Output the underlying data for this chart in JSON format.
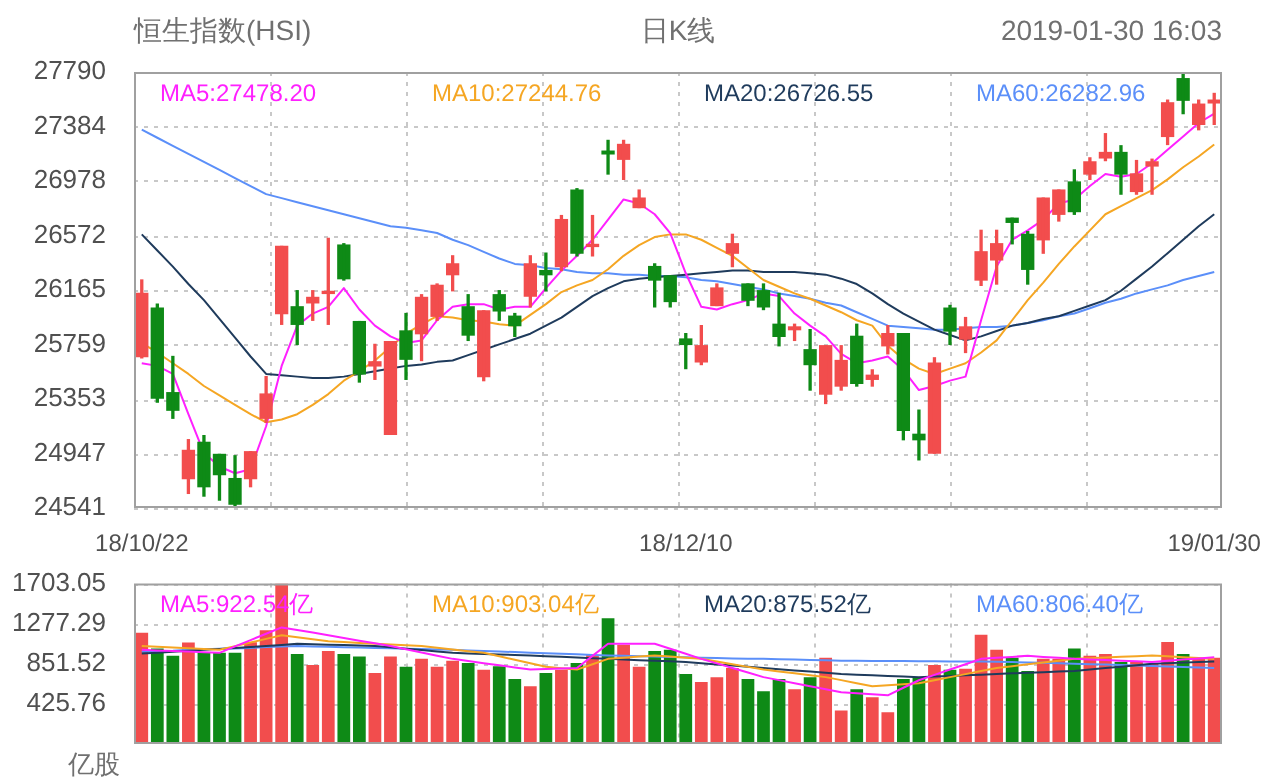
{
  "chart_data": [
    {
      "type": "candlestick",
      "title": "恒生指数(HSI)",
      "subtitle": "日K线",
      "annotations": [
        "2019-01-30 16:03"
      ],
      "categories": [
        "18/10/22",
        null,
        null,
        null,
        null,
        null,
        null,
        null,
        null,
        null,
        null,
        null,
        null,
        null,
        null,
        null,
        null,
        null,
        null,
        null,
        null,
        null,
        null,
        null,
        null,
        null,
        null,
        null,
        null,
        null,
        null,
        null,
        null,
        null,
        null,
        "18/12/10",
        null,
        null,
        null,
        null,
        null,
        null,
        null,
        null,
        null,
        null,
        null,
        null,
        null,
        null,
        null,
        null,
        null,
        null,
        null,
        null,
        null,
        null,
        null,
        null,
        null,
        null,
        null,
        null,
        null,
        null,
        null,
        null,
        null,
        "19/01/30"
      ],
      "ohlc": [
        [
          25670,
          26240,
          25660,
          26140
        ],
        [
          26030,
          26060,
          25330,
          25360
        ],
        [
          25400,
          25670,
          25210,
          25270
        ],
        [
          24760,
          25050,
          24650,
          24970
        ],
        [
          25030,
          25080,
          24630,
          24700
        ],
        [
          24940,
          24940,
          24600,
          24790
        ],
        [
          24760,
          24930,
          24550,
          24570
        ],
        [
          24760,
          24960,
          24700,
          24960
        ],
        [
          25210,
          25520,
          25180,
          25390
        ],
        [
          25990,
          26490,
          25910,
          26490
        ],
        [
          26040,
          26160,
          25760,
          25910
        ],
        [
          26070,
          26160,
          25940,
          26110
        ],
        [
          26140,
          26550,
          25910,
          26150
        ],
        [
          26500,
          26510,
          26240,
          26250
        ],
        [
          25930,
          25930,
          25480,
          25540
        ],
        [
          25600,
          25760,
          25500,
          25630
        ],
        [
          25090,
          25780,
          25090,
          25780
        ],
        [
          25860,
          25990,
          25500,
          25650
        ],
        [
          25840,
          26130,
          25640,
          26110
        ],
        [
          25970,
          26210,
          25940,
          26200
        ],
        [
          26280,
          26420,
          26160,
          26360
        ],
        [
          26040,
          26130,
          25790,
          25830
        ],
        [
          25520,
          26010,
          25490,
          26010
        ],
        [
          26130,
          26160,
          25940,
          26010
        ],
        [
          25970,
          25990,
          25820,
          25900
        ],
        [
          26120,
          26420,
          26040,
          26360
        ],
        [
          26310,
          26440,
          26160,
          26280
        ],
        [
          26340,
          26720,
          26310,
          26690
        ],
        [
          26910,
          26920,
          26420,
          26440
        ],
        [
          26490,
          26720,
          26420,
          26500
        ],
        [
          27200,
          27280,
          27030,
          27180
        ],
        [
          27140,
          27280,
          26990,
          27250
        ],
        [
          26780,
          26910,
          26780,
          26850
        ],
        [
          26340,
          26360,
          26040,
          26240
        ],
        [
          26270,
          26270,
          26040,
          26080
        ],
        [
          25800,
          25840,
          25580,
          25760
        ],
        [
          25630,
          25900,
          25610,
          25750
        ],
        [
          26050,
          26210,
          26050,
          26180
        ],
        [
          26440,
          26580,
          26340,
          26510
        ],
        [
          26210,
          26210,
          26050,
          26090
        ],
        [
          26160,
          26210,
          26020,
          26040
        ],
        [
          25910,
          26140,
          25750,
          25820
        ],
        [
          25870,
          25910,
          25790,
          25890
        ],
        [
          25720,
          25870,
          25420,
          25610
        ],
        [
          25390,
          25750,
          25320,
          25750
        ],
        [
          25450,
          25750,
          25420,
          25640
        ],
        [
          25820,
          25910,
          25450,
          25470
        ],
        [
          25500,
          25570,
          25450,
          25530
        ],
        [
          25750,
          25900,
          25690,
          25840
        ],
        [
          25840,
          25840,
          25050,
          25120
        ],
        [
          25090,
          25270,
          24900,
          25050
        ],
        [
          24950,
          25660,
          24950,
          25620
        ],
        [
          26030,
          26050,
          25760,
          25860
        ],
        [
          25800,
          25960,
          25700,
          25890
        ],
        [
          26240,
          26610,
          26200,
          26450
        ],
        [
          26390,
          26610,
          26210,
          26510
        ],
        [
          26700,
          26700,
          26510,
          26670
        ],
        [
          26580,
          26600,
          26210,
          26320
        ],
        [
          26540,
          26850,
          26440,
          26850
        ],
        [
          26730,
          26910,
          26680,
          26910
        ],
        [
          26970,
          27060,
          26730,
          26750
        ],
        [
          27030,
          27150,
          26990,
          27120
        ],
        [
          27150,
          27330,
          27130,
          27190
        ],
        [
          27190,
          27240,
          26880,
          27030
        ],
        [
          26900,
          27130,
          26880,
          27030
        ],
        [
          27090,
          27140,
          26880,
          27120
        ],
        [
          27310,
          27580,
          27250,
          27560
        ],
        [
          27740,
          27780,
          27480,
          27580
        ],
        [
          27400,
          27580,
          27360,
          27550
        ],
        [
          27560,
          27630,
          27400,
          27580
        ]
      ],
      "colors": [
        "#f24d4d",
        "#0e8a16",
        "#0e8a16",
        "#f24d4d",
        "#0e8a16",
        "#0e8a16",
        "#0e8a16",
        "#f24d4d",
        "#f24d4d",
        "#f24d4d",
        "#0e8a16",
        "#f24d4d",
        "#f24d4d",
        "#0e8a16",
        "#0e8a16",
        "#f24d4d",
        "#f24d4d",
        "#0e8a16",
        "#f24d4d",
        "#f24d4d",
        "#f24d4d",
        "#0e8a16",
        "#f24d4d",
        "#0e8a16",
        "#0e8a16",
        "#f24d4d",
        "#0e8a16",
        "#f24d4d",
        "#0e8a16",
        "#f24d4d",
        "#0e8a16",
        "#f24d4d",
        "#f24d4d",
        "#0e8a16",
        "#0e8a16",
        "#0e8a16",
        "#f24d4d",
        "#f24d4d",
        "#f24d4d",
        "#0e8a16",
        "#0e8a16",
        "#0e8a16",
        "#f24d4d",
        "#0e8a16",
        "#f24d4d",
        "#f24d4d",
        "#0e8a16",
        "#f24d4d",
        "#f24d4d",
        "#0e8a16",
        "#0e8a16",
        "#f24d4d",
        "#0e8a16",
        "#f24d4d",
        "#f24d4d",
        "#f24d4d",
        "#0e8a16",
        "#0e8a16",
        "#f24d4d",
        "#f24d4d",
        "#0e8a16",
        "#f24d4d",
        "#f24d4d",
        "#0e8a16",
        "#f24d4d",
        "#f24d4d",
        "#f24d4d",
        "#0e8a16",
        "#f24d4d",
        "#f24d4d"
      ],
      "series": [
        {
          "type": "line",
          "name": "MA5:27478.20",
          "color": "#ff20ff",
          "values": [
            25620,
            25600,
            25540,
            25240,
            24950,
            24850,
            24800,
            24830,
            25150,
            25600,
            25900,
            25990,
            26040,
            26180,
            26020,
            25900,
            25820,
            25770,
            25790,
            25940,
            26040,
            26060,
            26060,
            26020,
            26040,
            26040,
            26180,
            26310,
            26420,
            26540,
            26690,
            26840,
            26810,
            26730,
            26590,
            26290,
            26040,
            26020,
            26060,
            26090,
            26140,
            26120,
            25990,
            25900,
            25820,
            25690,
            25620,
            25640,
            25670,
            25570,
            25420,
            25450,
            25490,
            25520,
            25940,
            26340,
            26540,
            26610,
            26690,
            26810,
            26840,
            26940,
            27030,
            27010,
            27030,
            27110,
            27210,
            27310,
            27410,
            27480
          ]
        },
        {
          "type": "line",
          "name": "MA10:27244.76",
          "color": "#f5a623",
          "values": [
            25770,
            25700,
            25620,
            25540,
            25450,
            25380,
            25310,
            25240,
            25180,
            25200,
            25240,
            25310,
            25390,
            25490,
            25560,
            25640,
            25740,
            25840,
            25910,
            25970,
            25960,
            25940,
            25930,
            25910,
            25900,
            25980,
            26060,
            26150,
            26200,
            26240,
            26320,
            26420,
            26500,
            26560,
            26580,
            26580,
            26540,
            26480,
            26420,
            26330,
            26240,
            26190,
            26140,
            26100,
            26050,
            26000,
            25940,
            25900,
            25750,
            25650,
            25580,
            25540,
            25580,
            25620,
            25700,
            25790,
            25940,
            26090,
            26220,
            26360,
            26490,
            26610,
            26730,
            26790,
            26850,
            26910,
            26990,
            27080,
            27160,
            27250
          ]
        },
        {
          "type": "line",
          "name": "MA20:26726.55",
          "color": "#1f3b5c",
          "values": [
            26580,
            26460,
            26340,
            26210,
            26090,
            25950,
            25810,
            25670,
            25540,
            25530,
            25520,
            25510,
            25510,
            25520,
            25540,
            25560,
            25580,
            25600,
            25610,
            25630,
            25640,
            25680,
            25720,
            25760,
            25800,
            25840,
            25900,
            25960,
            26040,
            26120,
            26180,
            26230,
            26250,
            26260,
            26270,
            26280,
            26290,
            26300,
            26310,
            26310,
            26300,
            26300,
            26300,
            26290,
            26280,
            26250,
            26210,
            26140,
            26060,
            25990,
            25930,
            25870,
            25830,
            25790,
            25820,
            25860,
            25900,
            25920,
            25950,
            25970,
            26010,
            26050,
            26090,
            26160,
            26250,
            26340,
            26440,
            26540,
            26640,
            26730
          ]
        },
        {
          "type": "line",
          "name": "MA60:26282.96",
          "color": "#5b8ff9",
          "values": [
            27360,
            27300,
            27240,
            27180,
            27120,
            27060,
            27000,
            26940,
            26880,
            26850,
            26820,
            26790,
            26760,
            26730,
            26700,
            26670,
            26640,
            26630,
            26610,
            26590,
            26540,
            26500,
            26450,
            26400,
            26360,
            26350,
            26330,
            26320,
            26300,
            26290,
            26290,
            26280,
            26280,
            26270,
            26270,
            26260,
            26240,
            26230,
            26210,
            26190,
            26170,
            26140,
            26120,
            26100,
            26070,
            26050,
            26000,
            25950,
            25900,
            25890,
            25880,
            25870,
            25870,
            25880,
            25890,
            25890,
            25900,
            25920,
            25940,
            25970,
            25990,
            26030,
            26070,
            26100,
            26140,
            26170,
            26200,
            26240,
            26270,
            26300
          ]
        }
      ],
      "ylim": [
        24541,
        27790
      ],
      "yticks": [
        24541,
        24947,
        25353,
        25759,
        26165,
        26572,
        26978,
        27384,
        27790
      ],
      "grid": true,
      "legend": "top"
    },
    {
      "type": "bar",
      "ylabel": "亿股",
      "categories": [
        null,
        null,
        null,
        null,
        null,
        null,
        null,
        null,
        null,
        null,
        null,
        null,
        null,
        null,
        null,
        null,
        null,
        null,
        null,
        null,
        null,
        null,
        null,
        null,
        null,
        null,
        null,
        null,
        null,
        null,
        null,
        null,
        null,
        null,
        null,
        null,
        null,
        null,
        null,
        null,
        null,
        null,
        null,
        null,
        null,
        null,
        null,
        null,
        null,
        null,
        null,
        null,
        null,
        null,
        null,
        null,
        null,
        null,
        null,
        null,
        null,
        null,
        null,
        null,
        null,
        null,
        null,
        null,
        null,
        null
      ],
      "series": [
        {
          "type": "bar",
          "values": [
            1180,
            1014,
            937,
            1078,
            968,
            968,
            968,
            1080,
            1207,
            1703,
            956,
            840,
            987,
            956,
            929,
            755,
            929,
            820,
            904,
            820,
            884,
            859,
            788,
            826,
            691,
            613,
            755,
            788,
            859,
            948,
            1335,
            1053,
            820,
            987,
            1000,
            743,
            658,
            710,
            807,
            691,
            561,
            691,
            581,
            710,
            917,
            356,
            581,
            497,
            337,
            691,
            710,
            840,
            788,
            800,
            1161,
            1000,
            917,
            774,
            904,
            904,
            1014,
            937,
            956,
            871,
            871,
            852,
            1084,
            956,
            917,
            917
          ],
          "colors": [
            "#f24d4d",
            "#0e8a16",
            "#0e8a16",
            "#f24d4d",
            "#0e8a16",
            "#0e8a16",
            "#0e8a16",
            "#f24d4d",
            "#f24d4d",
            "#f24d4d",
            "#0e8a16",
            "#f24d4d",
            "#f24d4d",
            "#0e8a16",
            "#0e8a16",
            "#f24d4d",
            "#f24d4d",
            "#0e8a16",
            "#f24d4d",
            "#f24d4d",
            "#f24d4d",
            "#0e8a16",
            "#f24d4d",
            "#0e8a16",
            "#0e8a16",
            "#f24d4d",
            "#0e8a16",
            "#f24d4d",
            "#0e8a16",
            "#f24d4d",
            "#0e8a16",
            "#f24d4d",
            "#f24d4d",
            "#0e8a16",
            "#0e8a16",
            "#0e8a16",
            "#f24d4d",
            "#f24d4d",
            "#f24d4d",
            "#0e8a16",
            "#0e8a16",
            "#0e8a16",
            "#f24d4d",
            "#0e8a16",
            "#f24d4d",
            "#f24d4d",
            "#0e8a16",
            "#f24d4d",
            "#f24d4d",
            "#0e8a16",
            "#0e8a16",
            "#f24d4d",
            "#0e8a16",
            "#f24d4d",
            "#f24d4d",
            "#f24d4d",
            "#0e8a16",
            "#0e8a16",
            "#f24d4d",
            "#f24d4d",
            "#0e8a16",
            "#f24d4d",
            "#f24d4d",
            "#0e8a16",
            "#f24d4d",
            "#f24d4d",
            "#f24d4d",
            "#0e8a16",
            "#f24d4d",
            "#f24d4d"
          ]
        },
        {
          "type": "line",
          "name": "MA5:922.54亿",
          "color": "#ff20ff",
          "values": [
            1000,
            994,
            987,
            981,
            974,
            968,
            1036,
            1103,
            1171,
            1238,
            1210,
            1183,
            1155,
            1126,
            1097,
            1069,
            1040,
            1006,
            972,
            938,
            904,
            881,
            858,
            836,
            813,
            790,
            796,
            801,
            807,
            936,
            1065,
            1065,
            1065,
            1065,
            1011,
            958,
            904,
            856,
            807,
            759,
            710,
            678,
            646,
            614,
            582,
            550,
            539,
            528,
            517,
            597,
            677,
            734,
            791,
            847,
            904,
            915,
            925,
            936,
            925,
            915,
            904,
            897,
            891,
            884,
            878,
            871,
            884,
            896,
            909,
            922
          ]
        },
        {
          "type": "line",
          "name": "MA10:903.04亿",
          "color": "#f5a623",
          "values": [
            1040,
            1032,
            1024,
            1016,
            1008,
            1000,
            1039,
            1078,
            1116,
            1155,
            1133,
            1112,
            1090,
            1082,
            1073,
            1065,
            1057,
            1048,
            1040,
            1022,
            1004,
            986,
            968,
            931,
            894,
            857,
            820,
            805,
            790,
            847,
            904,
            916,
            928,
            940,
            928,
            916,
            904,
            876,
            847,
            819,
            790,
            770,
            750,
            730,
            710,
            678,
            645,
            613,
            624,
            634,
            645,
            677,
            710,
            742,
            775,
            807,
            826,
            846,
            865,
            885,
            904,
            911,
            919,
            926,
            933,
            940,
            931,
            921,
            912,
            903
          ]
        },
        {
          "type": "line",
          "name": "MA20:875.52亿",
          "color": "#1f3b5c",
          "values": [
            960,
            970,
            980,
            990,
            1000,
            1010,
            1020,
            1030,
            1040,
            1052,
            1065,
            1060,
            1055,
            1050,
            1045,
            1040,
            1026,
            1012,
            997,
            982,
            968,
            962,
            956,
            951,
            945,
            940,
            933,
            926,
            918,
            911,
            904,
            897,
            890,
            884,
            878,
            871,
            858,
            845,
            833,
            820,
            807,
            794,
            781,
            769,
            756,
            743,
            736,
            730,
            723,
            717,
            710,
            717,
            723,
            730,
            736,
            743,
            750,
            756,
            762,
            769,
            775,
            790,
            806,
            821,
            837,
            852,
            858,
            864,
            870,
            876
          ]
        },
        {
          "type": "line",
          "name": "MA60:806.40亿",
          "color": "#5b8ff9",
          "values": [
            980,
            985,
            990,
            1000,
            1005,
            1010,
            1015,
            1020,
            1030,
            1035,
            1040,
            1036,
            1032,
            1028,
            1024,
            1020,
            1016,
            1012,
            1008,
            1004,
            1000,
            994,
            988,
            982,
            976,
            970,
            964,
            958,
            952,
            946,
            940,
            936,
            932,
            928,
            924,
            920,
            916,
            912,
            908,
            904,
            904,
            900,
            896,
            892,
            888,
            884,
            883,
            882,
            881,
            880,
            879,
            878,
            877,
            876,
            875,
            874,
            870,
            866,
            862,
            858,
            853,
            848,
            843,
            838,
            833,
            828,
            823,
            818,
            812,
            806
          ]
        }
      ],
      "ylim": [
        0,
        1703.05
      ],
      "yticks": [
        425.76,
        851.52,
        1277.29,
        1703.05
      ],
      "grid": true,
      "legend": "top",
      "tick_labels": "y"
    }
  ]
}
